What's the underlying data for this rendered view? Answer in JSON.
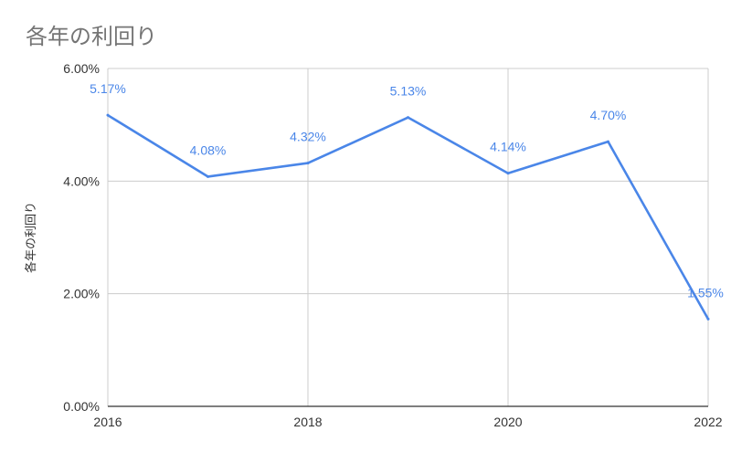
{
  "chart_data": {
    "type": "line",
    "title": "各年の利回り",
    "ylabel": "各年の利回り",
    "xlabel": "",
    "x": [
      2016,
      2017,
      2018,
      2019,
      2020,
      2021,
      2022
    ],
    "x_tick_labels": [
      "2016",
      "2018",
      "2020",
      "2022"
    ],
    "y_tick_labels": [
      "0.00%",
      "2.00%",
      "4.00%",
      "6.00%"
    ],
    "ylim": [
      0,
      6
    ],
    "series": [
      {
        "values": [
          5.17,
          4.08,
          4.32,
          5.13,
          4.14,
          4.7,
          1.55
        ],
        "data_labels": [
          "5.17%",
          "4.08%",
          "4.32%",
          "5.13%",
          "4.14%",
          "4.70%",
          "1.55%"
        ]
      }
    ],
    "grid": true,
    "colors": {
      "line": "#4a86e8",
      "label": "#4a86e8",
      "grid": "#cccccc",
      "axis": "#333333",
      "title": "#757575"
    }
  }
}
